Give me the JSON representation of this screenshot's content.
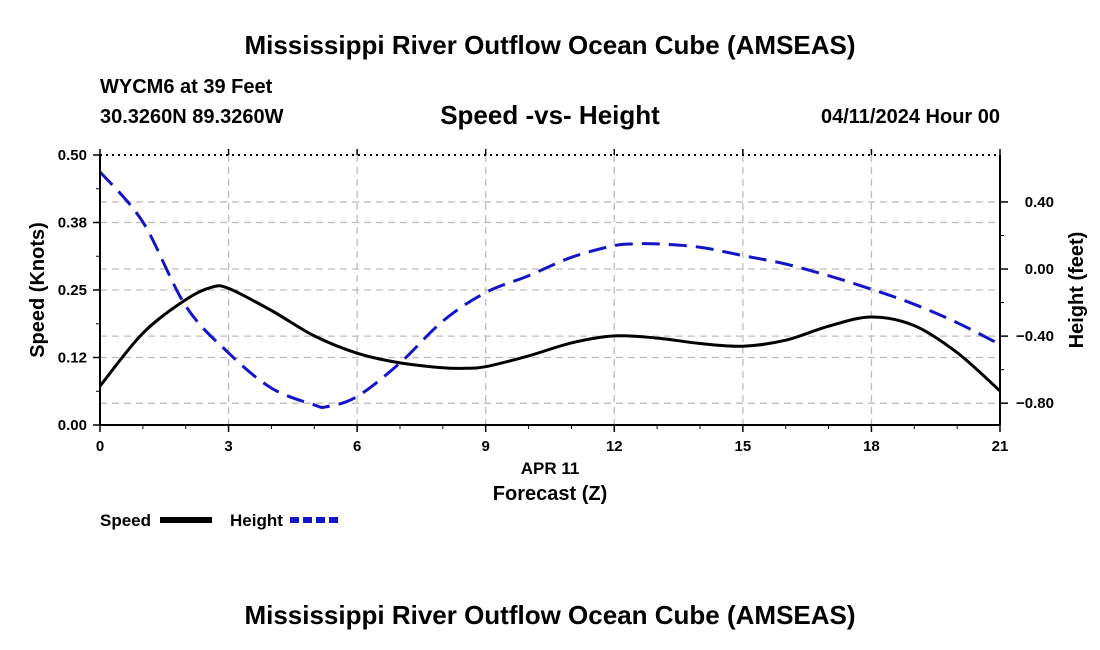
{
  "header": {
    "title": "Mississippi River Outflow Ocean Cube (AMSEAS)",
    "station": "WYCM6 at 39 Feet",
    "coords": "30.3260N  89.3260W",
    "subtitle": "Speed -vs- Height",
    "datetime": "04/11/2024 Hour 00"
  },
  "footer": {
    "title": "Mississippi River Outflow Ocean Cube (AMSEAS)"
  },
  "legend": {
    "speed_label": "Speed",
    "height_label": "Height"
  },
  "colors": {
    "speed": "#000000",
    "height": "#1515c8",
    "grid": "#bdbdbd"
  },
  "chart_data": {
    "type": "line",
    "title": "Speed -vs- Height",
    "xlabel": "Forecast (Z)",
    "xlabel_date": "APR 11",
    "ylabel": "Speed (Knots)",
    "y2label": "Height (feet)",
    "xlim": [
      0,
      21
    ],
    "ylim": [
      0,
      0.5
    ],
    "y2lim": [
      -0.93,
      0.68
    ],
    "xticks": [
      0,
      3,
      6,
      9,
      12,
      15,
      18,
      21
    ],
    "xtick_labels": [
      "0",
      "3",
      "6",
      "9",
      "12",
      "15",
      "18",
      "21"
    ],
    "yticks": [
      0.0,
      0.125,
      0.25,
      0.375,
      0.5
    ],
    "ytick_labels": [
      "0.00",
      "0.12",
      "0.25",
      "0.38",
      "0.50"
    ],
    "y2ticks": [
      -0.8,
      -0.4,
      0.0,
      0.4
    ],
    "y2tick_labels": [
      "−0.80",
      "−0.40",
      "0.00",
      "0.40"
    ],
    "grid": true,
    "series": [
      {
        "name": "Speed",
        "axis": "left",
        "style": "solid",
        "x": [
          0,
          1,
          2,
          2.6,
          3,
          4,
          5,
          6,
          7,
          8,
          8.5,
          9,
          10,
          11,
          12,
          13,
          14,
          15,
          16,
          17,
          18,
          19,
          20,
          21
        ],
        "y": [
          0.072,
          0.17,
          0.232,
          0.255,
          0.253,
          0.212,
          0.165,
          0.133,
          0.115,
          0.106,
          0.105,
          0.108,
          0.128,
          0.152,
          0.165,
          0.161,
          0.151,
          0.146,
          0.157,
          0.183,
          0.2,
          0.184,
          0.134,
          0.063
        ]
      },
      {
        "name": "Height",
        "axis": "right",
        "style": "dashed",
        "x": [
          0,
          1,
          2,
          3,
          4,
          5,
          5.3,
          6,
          7,
          8,
          9,
          10,
          11,
          12,
          12.5,
          13,
          14,
          15,
          16,
          17,
          18,
          19,
          20,
          21
        ],
        "y": [
          0.58,
          0.28,
          -0.22,
          -0.5,
          -0.71,
          -0.81,
          -0.82,
          -0.76,
          -0.56,
          -0.31,
          -0.14,
          -0.04,
          0.07,
          0.14,
          0.15,
          0.15,
          0.13,
          0.08,
          0.03,
          -0.04,
          -0.12,
          -0.21,
          -0.32,
          -0.45
        ]
      }
    ]
  }
}
